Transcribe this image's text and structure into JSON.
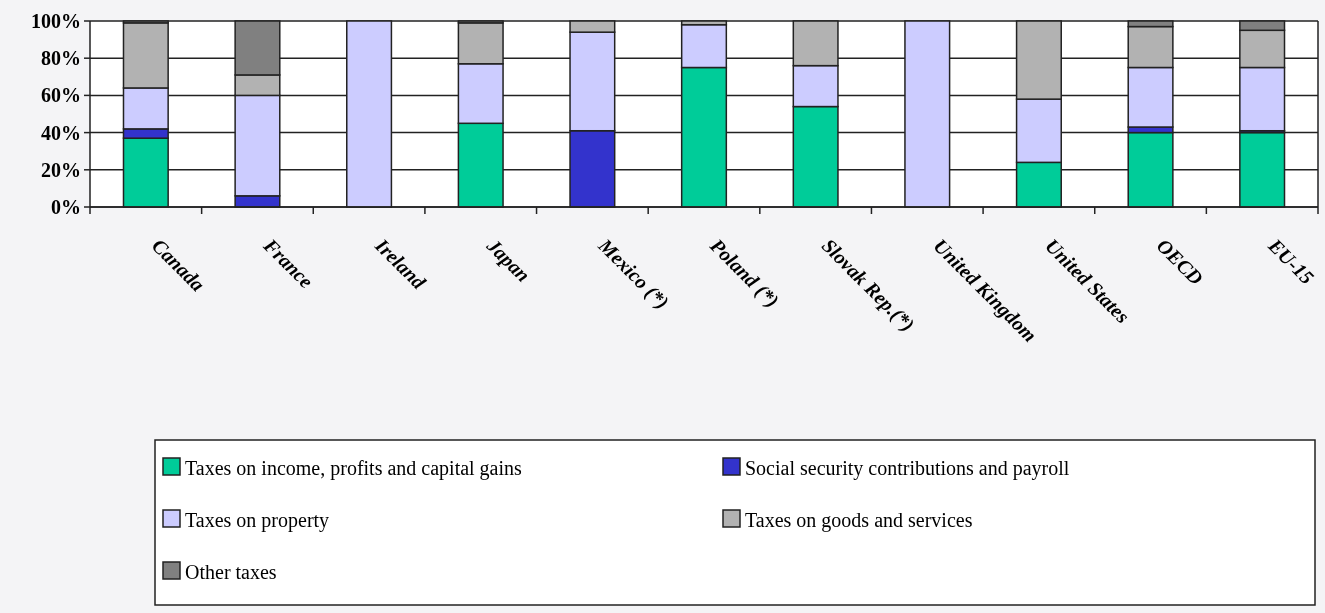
{
  "chart_data": {
    "type": "bar",
    "stacked": true,
    "categories": [
      "Canada",
      "France",
      "Ireland",
      "Japan",
      "Mexico (*)",
      "Poland (*)",
      "Slovak Rep.(*)",
      "United Kingdom",
      "United States",
      "OECD",
      "EU-15"
    ],
    "series": [
      {
        "name": "Taxes on income, profits and capital gains",
        "color": "#00cc99",
        "values": [
          37,
          0,
          0,
          45,
          0,
          75,
          54,
          0,
          24,
          40,
          40
        ]
      },
      {
        "name": "Social security contributions and payroll",
        "color": "#3333cc",
        "values": [
          5,
          6,
          0,
          0,
          41,
          0,
          0,
          0,
          0,
          3,
          1
        ]
      },
      {
        "name": "Taxes on property",
        "color": "#ccccff",
        "values": [
          22,
          54,
          100,
          32,
          53,
          23,
          22,
          100,
          34,
          32,
          34
        ]
      },
      {
        "name": "Taxes on goods and services",
        "color": "#b2b2b2",
        "values": [
          35,
          11,
          0,
          22,
          6,
          2,
          24,
          0,
          42,
          22,
          20
        ]
      },
      {
        "name": "Other taxes",
        "color": "#808080",
        "values": [
          1,
          29,
          0,
          1,
          0,
          0,
          0,
          0,
          0,
          3,
          5
        ]
      }
    ],
    "ylim": [
      0,
      100
    ],
    "yticks": [
      {
        "value": 0,
        "label": "0%"
      },
      {
        "value": 20,
        "label": "20%"
      },
      {
        "value": 40,
        "label": "40%"
      },
      {
        "value": 60,
        "label": "60%"
      },
      {
        "value": 80,
        "label": "80%"
      },
      {
        "value": 100,
        "label": "100%"
      }
    ],
    "grid": "y",
    "legend": "bottom"
  }
}
